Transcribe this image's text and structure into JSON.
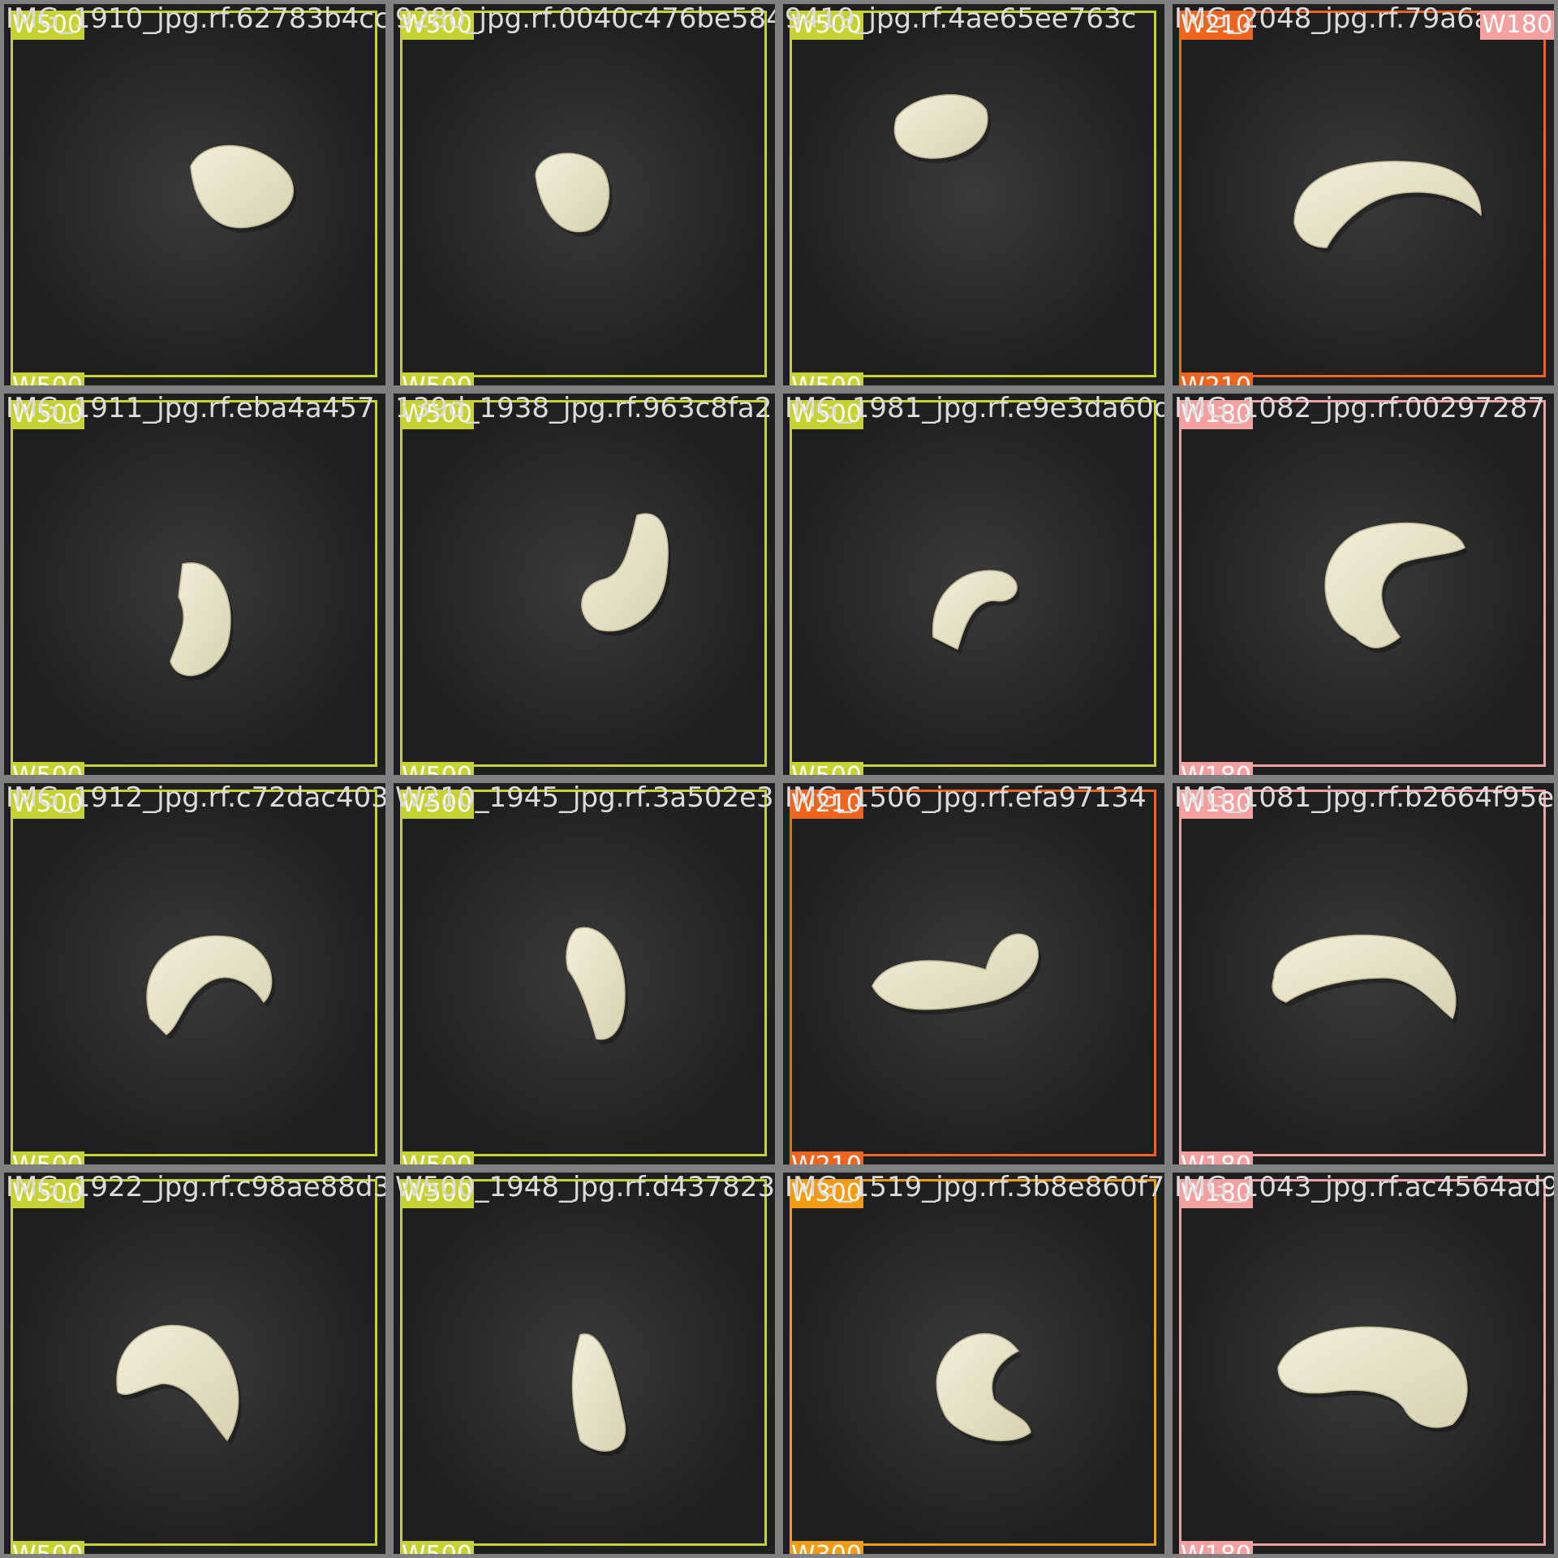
{
  "classes": {
    "W500": {
      "label": "W500",
      "color": "#c6d132"
    },
    "W210": {
      "label": "W210",
      "color": "#f0641e"
    },
    "W180": {
      "label": "W180",
      "color": "#f5a0a0"
    },
    "W300": {
      "label": "W300",
      "color": "#f39c12"
    }
  },
  "tiles": [
    {
      "filename": "IMG_1910_jpg.rf.62783b4cc",
      "label": "W500",
      "color": "#c6d132",
      "kernel": "curl-right"
    },
    {
      "filename": "9280_jpg.rf.0040c476be584",
      "label": "W500",
      "color": "#c6d132",
      "kernel": "broken"
    },
    {
      "filename": "9419_jpg.rf.4ae65ee763c",
      "label": "W500",
      "color": "#c6d132",
      "kernel": "small"
    },
    {
      "filename": "IMG_2048_jpg.rf.79a6a",
      "label": "W210",
      "color": "#f0641e",
      "kernel": "arc",
      "extra_label": "W180",
      "extra_color": "#f5a0a0"
    },
    {
      "filename": "IMG_1911_jpg.rf.eba4a457",
      "label": "W500",
      "color": "#c6d132",
      "kernel": "vertical"
    },
    {
      "filename": "139d_1938_jpg.rf.963c8fa21",
      "label": "W500",
      "color": "#c6d132",
      "kernel": "j-shape"
    },
    {
      "filename": "IMG_1981_jpg.rf.e9e3da60df3",
      "label": "W500",
      "color": "#c6d132",
      "kernel": "small-arc"
    },
    {
      "filename": "IMG_1082_jpg.rf.00297287",
      "label": "W180",
      "color": "#f5a0a0",
      "kernel": "big-c"
    },
    {
      "filename": "IMG_1912_jpg.rf.c72dac403",
      "label": "W500",
      "color": "#c6d132",
      "kernel": "arc-down"
    },
    {
      "filename": "W210_1945_jpg.rf.3a502e35c",
      "label": "W500",
      "color": "#c6d132",
      "kernel": "tilted"
    },
    {
      "filename": "IMG_1506_jpg.rf.efa97134",
      "label": "W210",
      "color": "#f0641e",
      "kernel": "long"
    },
    {
      "filename": "IMG_1081_jpg.rf.b2664f95e",
      "label": "W180",
      "color": "#f5a0a0",
      "kernel": "wide-arc"
    },
    {
      "filename": "IMG_1922_jpg.rf.c98ae88d3",
      "label": "W500",
      "color": "#c6d132",
      "kernel": "hump"
    },
    {
      "filename": "W500_1948_jpg.rf.d437823db02",
      "label": "W500",
      "color": "#c6d132",
      "kernel": "vertical-curve"
    },
    {
      "filename": "IMG_1519_jpg.rf.3b8e860f7",
      "label": "W300",
      "color": "#f39c12",
      "kernel": "c-small"
    },
    {
      "filename": "IMG_1043_jpg.rf.ac4564ad9",
      "label": "W180",
      "color": "#f5a0a0",
      "kernel": "wide-curl"
    }
  ]
}
